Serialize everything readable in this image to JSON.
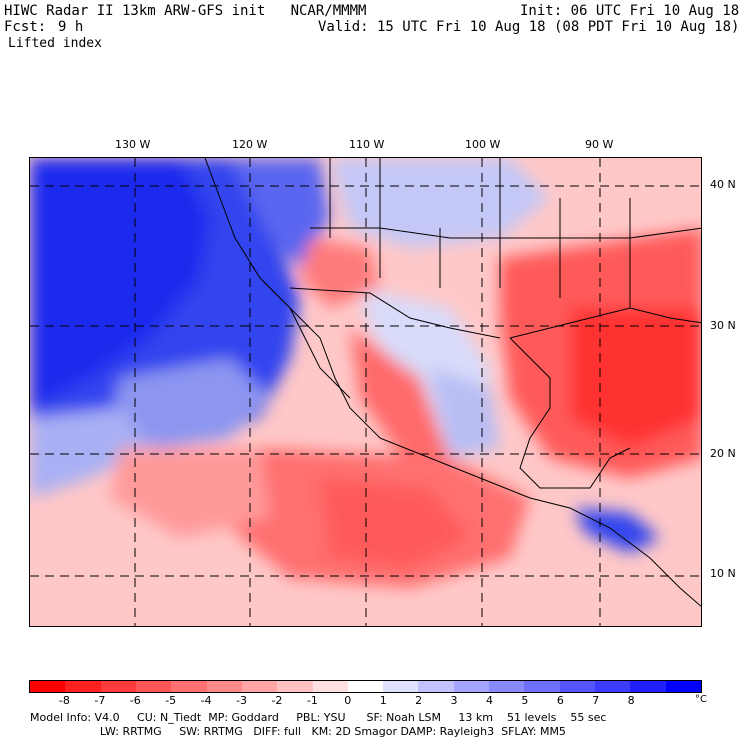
{
  "header": {
    "title": "HIWC Radar II 13km ARW-GFS init   NCAR/MMMM",
    "init": "Init: 06 UTC Fri 10 Aug 18",
    "fcst_label": "Fcst:",
    "fcst_value": "9 h",
    "valid": "Valid: 15 UTC Fri 10 Aug 18 (08 PDT Fri 10 Aug 18)",
    "field": "Lifted index"
  },
  "map": {
    "longitude_labels": [
      "130 W",
      "120 W",
      "110 W",
      "100 W",
      "90 W"
    ],
    "latitude_labels": [
      "40 N",
      "30 N",
      "20 N",
      "10 N"
    ]
  },
  "colorbar": {
    "ticks": [
      "-8",
      "-7",
      "-6",
      "-5",
      "-4",
      "-3",
      "-2",
      "-1",
      "0",
      "1",
      "2",
      "3",
      "4",
      "5",
      "6",
      "7",
      "8"
    ],
    "unit": "°C",
    "colors": [
      "#ff0000",
      "#ff2020",
      "#ff3c3c",
      "#ff5555",
      "#ff7070",
      "#ff8a8a",
      "#ffa5a5",
      "#ffc2c2",
      "#ffe0e0",
      "#ffffff",
      "#e0e0ff",
      "#c2c2ff",
      "#a5a5ff",
      "#8a8aff",
      "#7070ff",
      "#5555ff",
      "#3c3cff",
      "#2020ff",
      "#0000ff"
    ]
  },
  "footer": {
    "line1": "Model Info: V4.0     CU: N_Tiedt  MP: Goddard     PBL: YSU      SF: Noah LSM     13 km    51 levels    55 sec",
    "line2": "                    LW: RRTMG     SW: RRTMG   DIFF: full   KM: 2D Smagor DAMP: Rayleigh3  SFLAY: MM5"
  }
}
